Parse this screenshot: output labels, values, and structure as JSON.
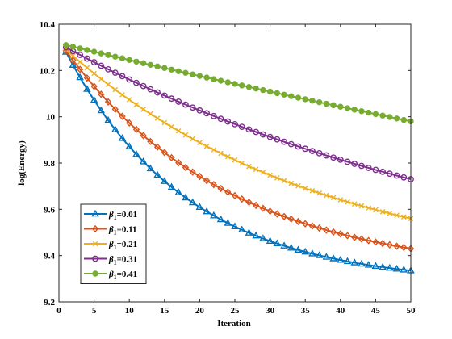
{
  "chart_data": {
    "type": "line",
    "title": "",
    "xlabel": "Iteration",
    "ylabel": "log(Energy)",
    "xlim": [
      0,
      50
    ],
    "ylim": [
      9.2,
      10.4
    ],
    "xticks": [
      0,
      5,
      10,
      15,
      20,
      25,
      30,
      35,
      40,
      45,
      50
    ],
    "yticks": [
      9.2,
      9.4,
      9.6,
      9.8,
      10,
      10.2,
      10.4
    ],
    "ytick_labels": [
      "9.2",
      "9.4",
      "9.6",
      "9.8",
      "10",
      "10.2",
      "10.4"
    ],
    "grid": false,
    "legend_position": "bottom-left",
    "x_start": 1,
    "x_end": 50,
    "series": [
      {
        "name_symbol": "β",
        "name_sub": "1",
        "name_value": "=0.01",
        "color": "#0072BD",
        "marker": "triangle",
        "y_start": 10.28,
        "y_end": 9.335,
        "shape": 0.95
      },
      {
        "name_symbol": "β",
        "name_sub": "1",
        "name_value": "=0.11",
        "color": "#D95319",
        "marker": "diamond",
        "y_start": 10.285,
        "y_end": 9.43,
        "shape": 0.7
      },
      {
        "name_symbol": "β",
        "name_sub": "1",
        "name_value": "=0.21",
        "color": "#EDB120",
        "marker": "x",
        "y_start": 10.29,
        "y_end": 9.56,
        "shape": 0.45
      },
      {
        "name_symbol": "β",
        "name_sub": "1",
        "name_value": "=0.31",
        "color": "#7E2F8E",
        "marker": "circle",
        "y_start": 10.3,
        "y_end": 9.73,
        "shape": 0.25
      },
      {
        "name_symbol": "β",
        "name_sub": "1",
        "name_value": "=0.41",
        "color": "#77AC30",
        "marker": "dot",
        "y_start": 10.31,
        "y_end": 9.98,
        "shape": 0.05
      }
    ]
  }
}
